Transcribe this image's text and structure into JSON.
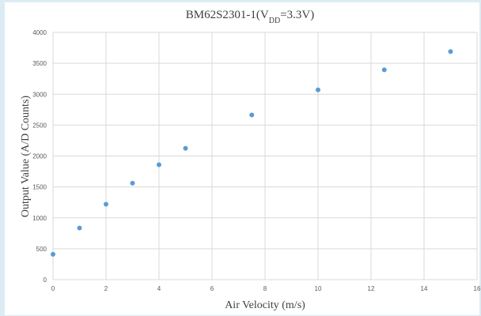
{
  "chart_data": {
    "type": "scatter",
    "title": {
      "main": "BM62S2301-1(V",
      "sub": "DD",
      "rest": "=3.3V)"
    },
    "xlabel": "Air Velocity (m/s)",
    "ylabel": "Output Value (A/D Counts)",
    "xlim": [
      0,
      16
    ],
    "ylim": [
      0,
      4000
    ],
    "x_ticks": [
      0,
      2,
      4,
      6,
      8,
      10,
      12,
      14,
      16
    ],
    "y_ticks": [
      0,
      500,
      1000,
      1500,
      2000,
      2500,
      3000,
      3500,
      4000
    ],
    "grid": "vertical and horizontal major gridlines",
    "legend": "none",
    "series": [
      {
        "color": "#5b9bd5",
        "x": [
          0,
          1,
          2,
          3,
          4,
          5,
          7.5,
          10,
          12.5,
          15
        ],
        "y": [
          410,
          835,
          1220,
          1560,
          1860,
          2125,
          2665,
          3070,
          3395,
          3690
        ]
      }
    ]
  }
}
